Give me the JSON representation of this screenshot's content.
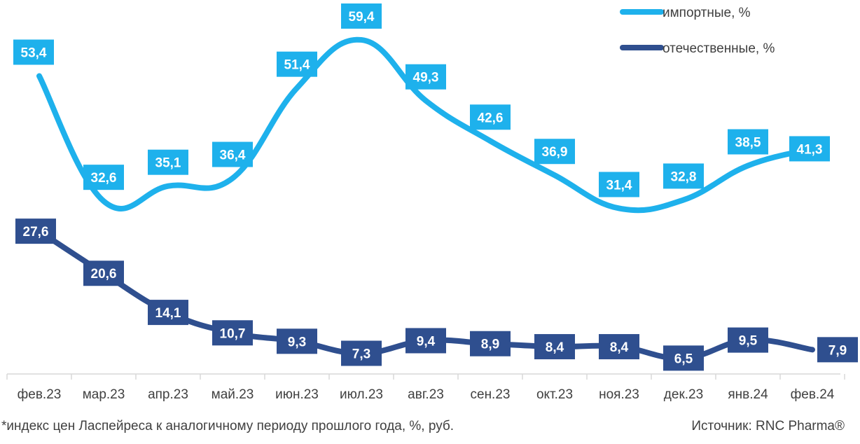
{
  "chart_data": {
    "type": "line",
    "categories": [
      "фев.23",
      "мар.23",
      "апр.23",
      "май.23",
      "июн.23",
      "июл.23",
      "авг.23",
      "сен.23",
      "окт.23",
      "ноя.23",
      "дек.23",
      "янв.24",
      "фев.24"
    ],
    "series": [
      {
        "name": "импортные, %",
        "color": "#1EB1EC",
        "values": [
          53.4,
          32.6,
          35.1,
          36.4,
          51.4,
          59.4,
          49.3,
          42.6,
          36.9,
          31.4,
          32.8,
          38.5,
          41.3
        ],
        "labels": [
          "53,4",
          "32,6",
          "35,1",
          "36,4",
          "51,4",
          "59,4",
          "49,3",
          "42,6",
          "36,9",
          "31,4",
          "32,8",
          "38,5",
          "41,3"
        ]
      },
      {
        "name": "отечественные, %",
        "color": "#2F4F8F",
        "values": [
          27.6,
          20.6,
          14.1,
          10.7,
          9.3,
          7.3,
          9.4,
          8.9,
          8.4,
          8.4,
          6.5,
          9.5,
          7.9
        ],
        "labels": [
          "27,6",
          "20,6",
          "14,1",
          "10,7",
          "9,3",
          "7,3",
          "9,4",
          "8,9",
          "8,4",
          "8,4",
          "6,5",
          "9,5",
          "7,9"
        ]
      }
    ],
    "legend": "top-right",
    "grid": false
  },
  "footnote": "*индекс цен Ласпейреса к аналогичному периоду прошлого года, %, руб.",
  "source": "Источник: RNC Pharma®"
}
